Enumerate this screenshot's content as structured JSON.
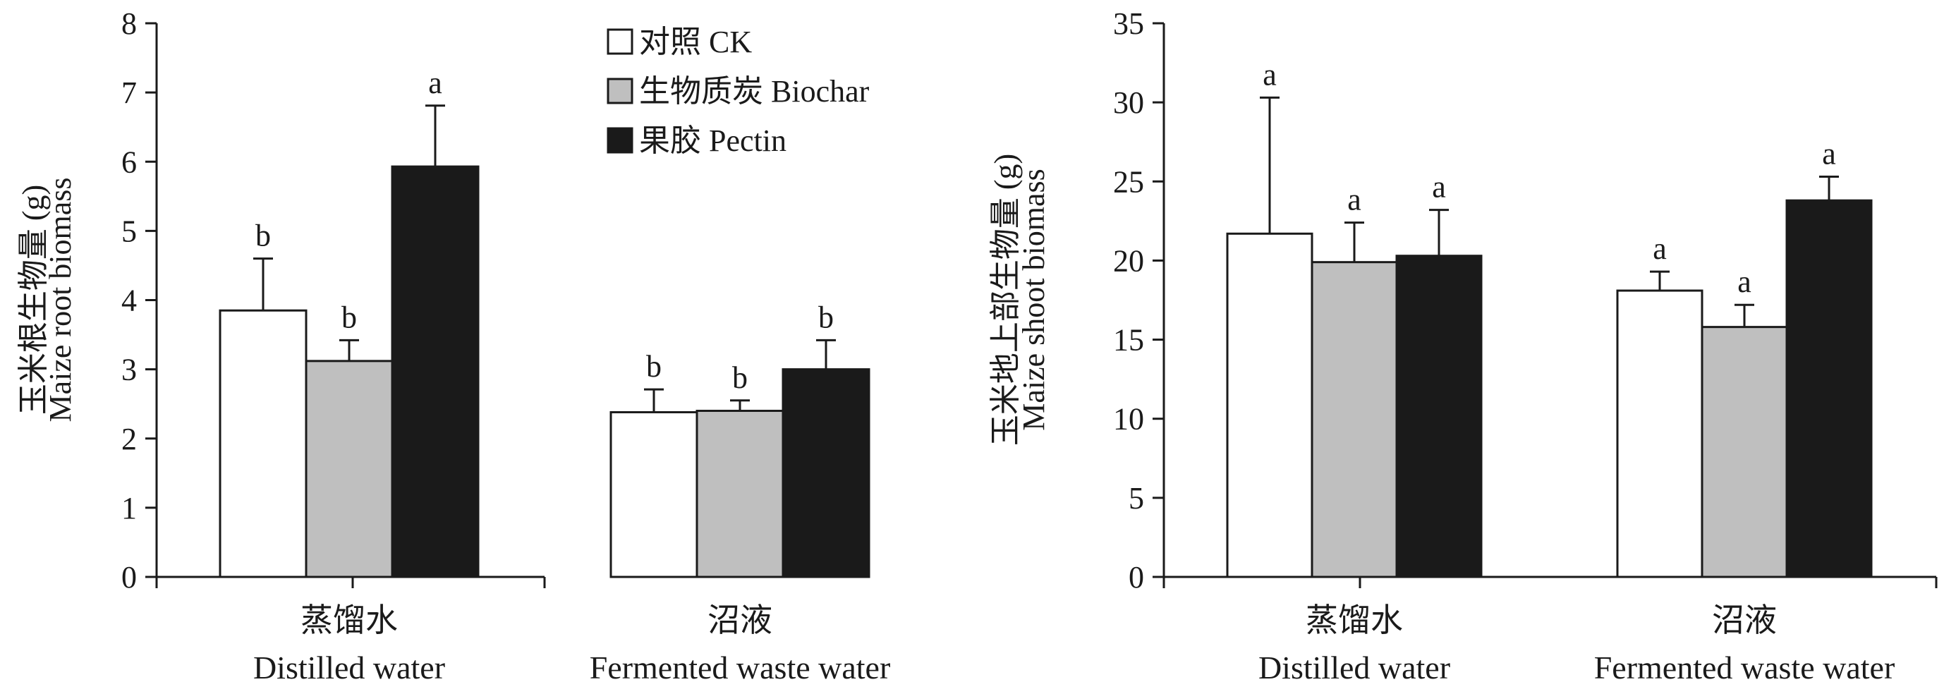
{
  "colors": {
    "CK": "#ffffff",
    "Biochar": "#bfbfbf",
    "Pectin": "#1a1a1a",
    "stroke": "#1a1a1a"
  },
  "legend": {
    "placement": "top-center of left panel",
    "entries": [
      "对照 CK",
      "生物质炭 Biochar",
      "果胶 Pectin"
    ]
  },
  "chart_data": [
    {
      "type": "bar",
      "ylabel_cn": "玉米根生物量 (g)",
      "ylabel_en": "Maize root biomass",
      "ylim": [
        0,
        8
      ],
      "yticks": [
        0,
        1,
        2,
        3,
        4,
        5,
        6,
        7,
        8
      ],
      "categories": [
        {
          "cn": "蒸馏水",
          "en": "Distilled water"
        },
        {
          "cn": "沼液",
          "en": "Fermented waste water"
        }
      ],
      "series": [
        {
          "name": "对照 CK",
          "key": "CK",
          "values": [
            3.85,
            2.38
          ],
          "errors": [
            0.75,
            0.33
          ],
          "letters": [
            "b",
            "b"
          ]
        },
        {
          "name": "生物质炭 Biochar",
          "key": "Biochar",
          "values": [
            3.12,
            2.4
          ],
          "errors": [
            0.3,
            0.15
          ],
          "letters": [
            "b",
            "b"
          ]
        },
        {
          "name": "果胶 Pectin",
          "key": "Pectin",
          "values": [
            5.93,
            3.0
          ],
          "errors": [
            0.88,
            0.42
          ],
          "letters": [
            "a",
            "b"
          ]
        }
      ]
    },
    {
      "type": "bar",
      "ylabel_cn": "玉米地上部生物量 (g)",
      "ylabel_en": "Maize shoot biomass",
      "ylim": [
        0,
        35
      ],
      "yticks": [
        0,
        5,
        10,
        15,
        20,
        25,
        30,
        35
      ],
      "categories": [
        {
          "cn": "蒸馏水",
          "en": "Distilled water"
        },
        {
          "cn": "沼液",
          "en": "Fermented waste water"
        }
      ],
      "series": [
        {
          "name": "对照 CK",
          "key": "CK",
          "values": [
            21.7,
            18.1
          ],
          "errors": [
            8.6,
            1.2
          ],
          "letters": [
            "a",
            "a"
          ]
        },
        {
          "name": "生物质炭 Biochar",
          "key": "Biochar",
          "values": [
            19.9,
            15.8
          ],
          "errors": [
            2.5,
            1.4
          ],
          "letters": [
            "a",
            "a"
          ]
        },
        {
          "name": "果胶 Pectin",
          "key": "Pectin",
          "values": [
            20.3,
            23.8
          ],
          "errors": [
            2.9,
            1.5
          ],
          "letters": [
            "a",
            "a"
          ]
        }
      ]
    }
  ]
}
